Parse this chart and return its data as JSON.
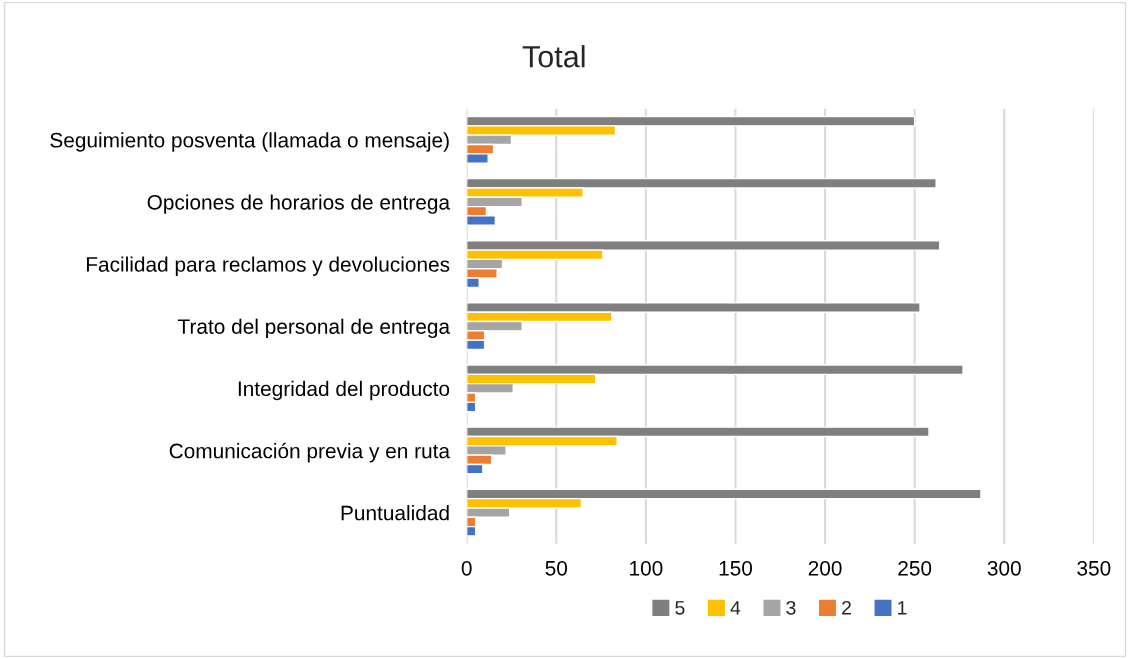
{
  "chart_data": {
    "type": "bar",
    "orientation": "horizontal",
    "title": "Total",
    "categories": [
      "Seguimiento posventa (llamada o mensaje)",
      "Opciones de horarios de entrega",
      "Facilidad para reclamos y devoluciones",
      "Trato del personal de entrega",
      "Integridad del producto",
      "Comunicación previa y en ruta",
      "Puntualidad"
    ],
    "series": [
      {
        "name": "5",
        "color": "#7f7f7f",
        "values": [
          250,
          262,
          264,
          253,
          277,
          258,
          287
        ]
      },
      {
        "name": "4",
        "color": "#ffc000",
        "values": [
          83,
          65,
          76,
          81,
          72,
          84,
          64
        ]
      },
      {
        "name": "3",
        "color": "#a5a5a5",
        "values": [
          25,
          31,
          20,
          31,
          26,
          22,
          24
        ]
      },
      {
        "name": "2",
        "color": "#ed7d31",
        "values": [
          15,
          11,
          17,
          10,
          5,
          14,
          5
        ]
      },
      {
        "name": "1",
        "color": "#4472c4",
        "values": [
          12,
          16,
          7,
          10,
          5,
          9,
          5
        ]
      }
    ],
    "xlim": [
      0,
      350
    ],
    "xticks": [
      0,
      50,
      100,
      150,
      200,
      250,
      300,
      350
    ],
    "grid": "x",
    "legend": "bottom"
  }
}
